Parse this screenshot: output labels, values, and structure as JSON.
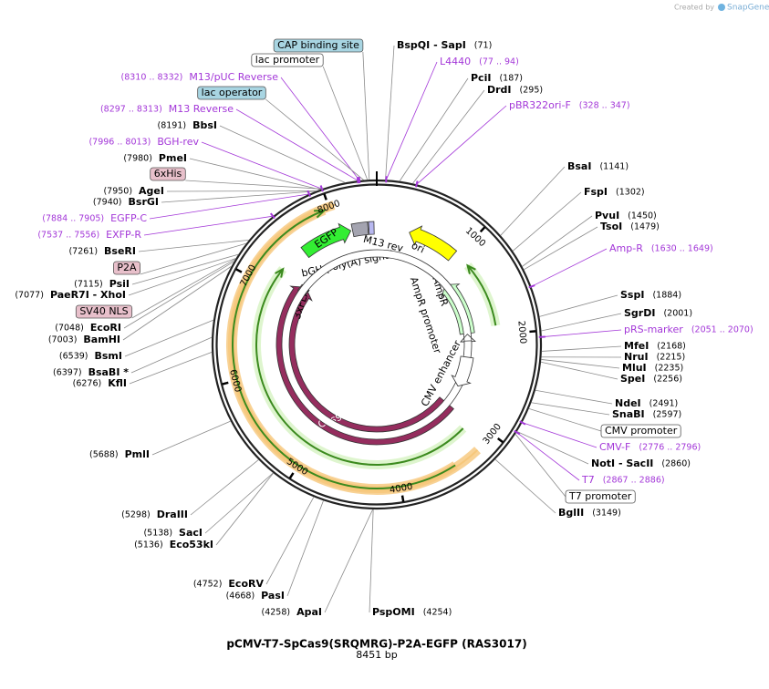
{
  "header": {
    "credit": "Created by",
    "brand": "SnapGene"
  },
  "map": {
    "title": "pCMV-T7-SpCas9(SRQMRG)-P2A-EGFP (RAS3017)",
    "size": "8451 bp",
    "ticks": [
      "1000",
      "2000",
      "3000",
      "4000",
      "5000",
      "6000",
      "7000",
      "8000"
    ],
    "features": [
      {
        "name": "Cas9"
      },
      {
        "name": "EGFP"
      },
      {
        "name": "3xFLAG"
      },
      {
        "name": "bGH poly(A) signal"
      },
      {
        "name": "M13 rev"
      },
      {
        "name": "ori"
      },
      {
        "name": "AmpR"
      },
      {
        "name": "AmpR promoter"
      },
      {
        "name": "CMV enhancer"
      }
    ],
    "labels": [
      {
        "name": "CAP binding site"
      },
      {
        "name": "lac promoter"
      },
      {
        "name": "M13/pUC Reverse",
        "site": "(8310 .. 8332)"
      },
      {
        "name": "lac operator"
      },
      {
        "name": "M13 Reverse",
        "site": "(8297 .. 8313)"
      },
      {
        "name": "BbsI",
        "site": "(8191)"
      },
      {
        "name": "BGH-rev",
        "site": "(7996 .. 8013)"
      },
      {
        "name": "PmeI",
        "site": "(7980)"
      },
      {
        "name": "6xHis"
      },
      {
        "name": "AgeI",
        "site": "(7950)"
      },
      {
        "name": "BsrGI",
        "site": "(7940)"
      },
      {
        "name": "EGFP-C",
        "site": "(7884 .. 7905)"
      },
      {
        "name": "EXFP-R",
        "site": "(7537 .. 7556)"
      },
      {
        "name": "BseRI",
        "site": "(7261)"
      },
      {
        "name": "P2A"
      },
      {
        "name": "PsiI",
        "site": "(7115)"
      },
      {
        "name": "PaeR7I - XhoI",
        "site": "(7077)"
      },
      {
        "name": "SV40 NLS"
      },
      {
        "name": "EcoRI",
        "site": "(7048)"
      },
      {
        "name": "BamHI",
        "site": "(7003)"
      },
      {
        "name": "BsmI",
        "site": "(6539)"
      },
      {
        "name": "BsaBI *",
        "site": "(6397)"
      },
      {
        "name": "KflI",
        "site": "(6276)"
      },
      {
        "name": "PmlI",
        "site": "(5688)"
      },
      {
        "name": "DraIII",
        "site": "(5298)"
      },
      {
        "name": "SacI",
        "site": "(5138)"
      },
      {
        "name": "Eco53kI",
        "site": "(5136)"
      },
      {
        "name": "EcoRV",
        "site": "(4752)"
      },
      {
        "name": "PasI",
        "site": "(4668)"
      },
      {
        "name": "ApaI",
        "site": "(4258)"
      },
      {
        "name": "PspOMI",
        "site": "(4254)"
      },
      {
        "name": "BspQI - SapI",
        "site": "(71)"
      },
      {
        "name": "L4440",
        "site": "(77 .. 94)"
      },
      {
        "name": "PciI",
        "site": "(187)"
      },
      {
        "name": "DrdI",
        "site": "(295)"
      },
      {
        "name": "pBR322ori-F",
        "site": "(328 .. 347)"
      },
      {
        "name": "BsaI",
        "site": "(1141)"
      },
      {
        "name": "FspI",
        "site": "(1302)"
      },
      {
        "name": "PvuI",
        "site": "(1450)"
      },
      {
        "name": "TsoI",
        "site": "(1479)"
      },
      {
        "name": "Amp-R",
        "site": "(1630 .. 1649)"
      },
      {
        "name": "SspI",
        "site": "(1884)"
      },
      {
        "name": "SgrDI",
        "site": "(2001)"
      },
      {
        "name": "pRS-marker",
        "site": "(2051 .. 2070)"
      },
      {
        "name": "MfeI",
        "site": "(2168)"
      },
      {
        "name": "NruI",
        "site": "(2215)"
      },
      {
        "name": "MluI",
        "site": "(2235)"
      },
      {
        "name": "SpeI",
        "site": "(2256)"
      },
      {
        "name": "NdeI",
        "site": "(2491)"
      },
      {
        "name": "SnaBI",
        "site": "(2597)"
      },
      {
        "name": "CMV promoter"
      },
      {
        "name": "CMV-F",
        "site": "(2776 .. 2796)"
      },
      {
        "name": "NotI - SacII",
        "site": "(2860)"
      },
      {
        "name": "T7",
        "site": "(2867 .. 2886)"
      },
      {
        "name": "T7 promoter"
      },
      {
        "name": "BglII",
        "site": "(3149)"
      }
    ]
  }
}
